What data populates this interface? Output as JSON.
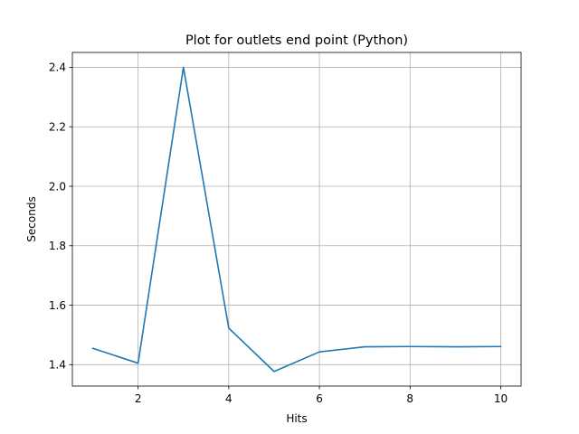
{
  "chart_data": {
    "type": "line",
    "title": "Plot for outlets end point (Python)",
    "xlabel": "Hits",
    "ylabel": "Seconds",
    "xlim": [
      0.55,
      10.45
    ],
    "ylim": [
      1.328,
      2.45
    ],
    "xticks": [
      2,
      4,
      6,
      8,
      10
    ],
    "yticks": [
      1.4,
      1.6,
      1.8,
      2.0,
      2.2,
      2.4
    ],
    "ytick_labels": [
      "1.4",
      "1.6",
      "1.8",
      "2.0",
      "2.2",
      "2.4"
    ],
    "grid": true,
    "series": [
      {
        "color": "#1f77b4",
        "x": [
          1,
          2,
          3,
          4,
          5,
          6,
          7,
          8,
          9,
          10
        ],
        "y": [
          1.455,
          1.405,
          2.4,
          1.523,
          1.377,
          1.443,
          1.46,
          1.461,
          1.46,
          1.461
        ]
      }
    ]
  }
}
